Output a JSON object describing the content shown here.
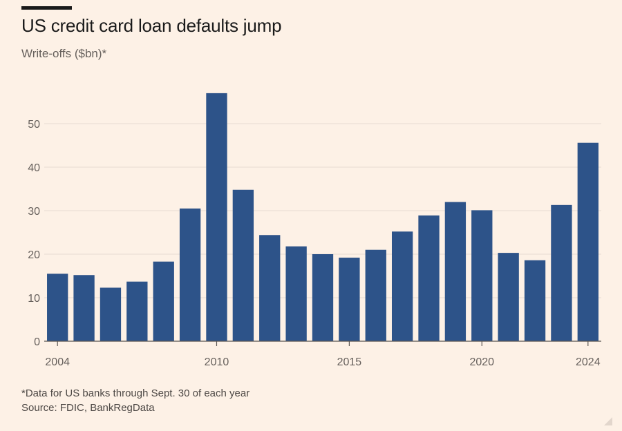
{
  "chart_data": {
    "type": "bar",
    "title": "US credit card loan defaults jump",
    "subtitle": "Write-offs ($bn)*",
    "categories": [
      "2004",
      "2005",
      "2006",
      "2007",
      "2008",
      "2009",
      "2010",
      "2011",
      "2012",
      "2013",
      "2014",
      "2015",
      "2016",
      "2017",
      "2018",
      "2019",
      "2020",
      "2021",
      "2022",
      "2023",
      "2024"
    ],
    "values": [
      15.5,
      15.2,
      12.3,
      13.7,
      18.3,
      30.5,
      57.0,
      34.8,
      24.4,
      21.8,
      20.0,
      19.2,
      21.0,
      25.2,
      28.9,
      32.0,
      30.1,
      20.3,
      18.6,
      31.3,
      45.6
    ],
    "x_tick_labels": [
      "2004",
      "2010",
      "2015",
      "2020",
      "2024"
    ],
    "y_ticks": [
      0,
      10,
      20,
      30,
      40,
      50
    ],
    "ylim": [
      0,
      60
    ],
    "xlabel": "",
    "ylabel": "",
    "grid": true,
    "bar_color": "#2d5389"
  },
  "footnote": "*Data for US banks through Sept. 30 of each year",
  "source": "Source: FDIC, BankRegData"
}
